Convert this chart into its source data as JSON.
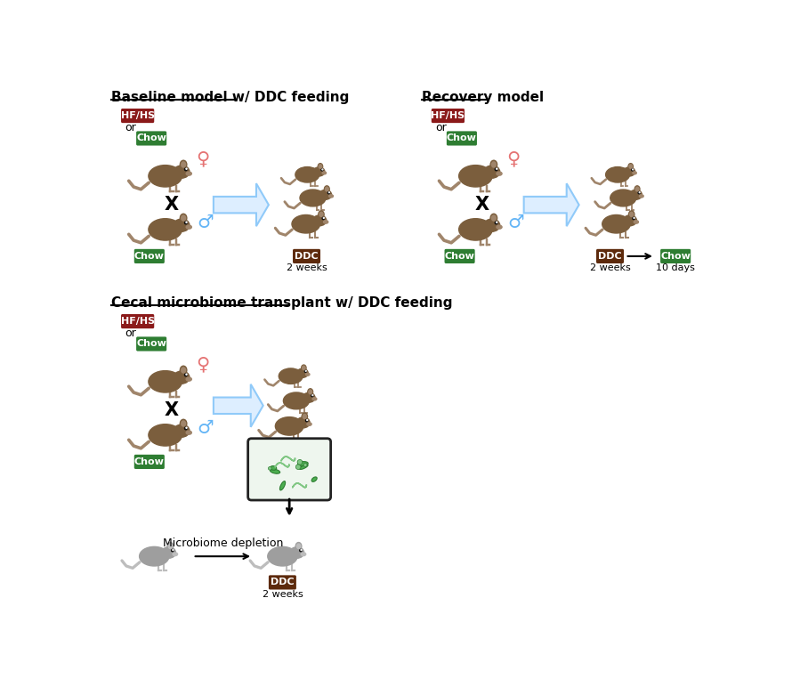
{
  "title_baseline": "Baseline model w/ DDC feeding",
  "title_recovery": "Recovery model",
  "title_cecal": "Cecal microbiome transplant w/ DDC feeding",
  "label_hfhs": "HF/HS",
  "label_chow": "Chow",
  "label_or": "or",
  "label_x": "X",
  "label_ddc": "DDC",
  "label_2weeks": "2 weeks",
  "label_10days": "10 days",
  "label_microbiome": "Microbiome depletion",
  "color_hfhs": "#8B1A1A",
  "color_chow": "#2E7D32",
  "color_ddc": "#5D2A0C",
  "color_female": "#E57373",
  "color_male": "#64B5F6",
  "color_arrow_fill": "#DDEEFF",
  "color_arrow_edge": "#90CAF9",
  "bg_color": "#FFFFFF",
  "mouse_color": "#7B5E3D",
  "mouse_light": "#A0856B",
  "germ_color_bg": "#EEF6EE",
  "germ_color_border": "#222222"
}
